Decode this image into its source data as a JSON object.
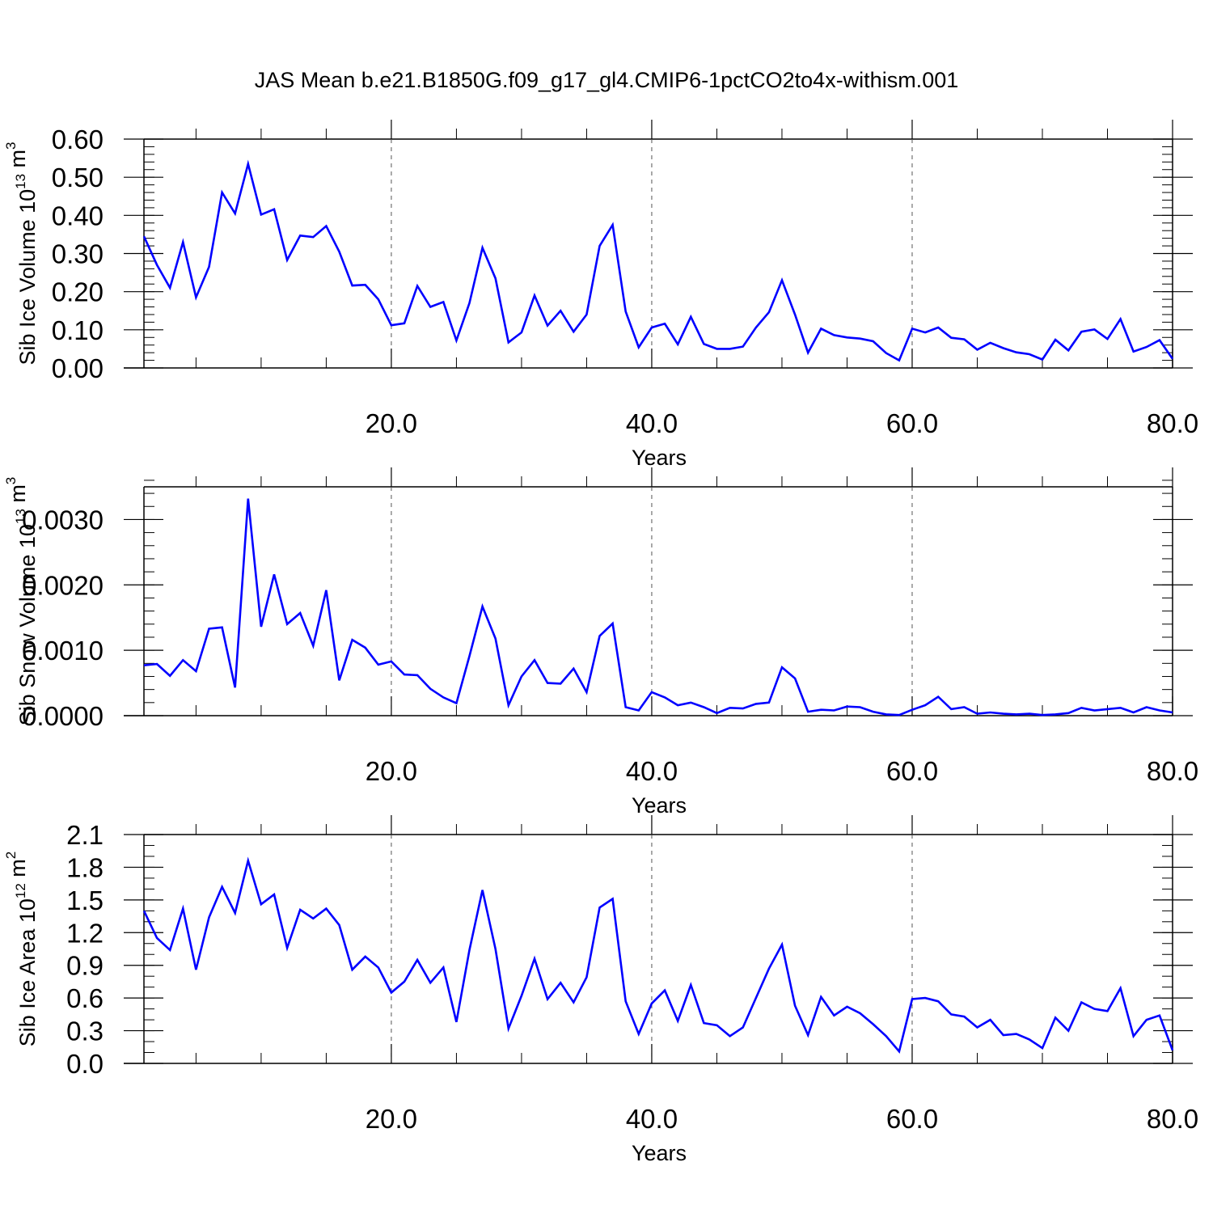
{
  "title": "JAS Mean b.e21.B1850G.f09_g17_gl4.CMIP6-1pctCO2to4x-withism.001",
  "line_color": "#0000ff",
  "chart_data": [
    {
      "type": "line",
      "name": "sib-ice-volume",
      "xlabel": "Years",
      "ylabel": "Sib Ice Volume 10",
      "ylabel_exp": "13",
      "ylabel_unit": " m",
      "ylabel_unit_exp": "3",
      "xlim": [
        1,
        80
      ],
      "ylim": [
        0,
        0.6
      ],
      "grid_x": true,
      "x_ticks": [
        20,
        40,
        60,
        80
      ],
      "x_tick_labels": [
        "20.0",
        "40.0",
        "60.0",
        "80.0"
      ],
      "y_ticks": [
        0,
        0.1,
        0.2,
        0.3,
        0.4,
        0.5,
        0.6
      ],
      "y_tick_labels": [
        "0.00",
        "0.10",
        "0.20",
        "0.30",
        "0.40",
        "0.50",
        "0.60"
      ],
      "y_minor_step": 0.02,
      "x": [
        1,
        2,
        3,
        4,
        5,
        6,
        7,
        8,
        9,
        10,
        11,
        12,
        13,
        14,
        15,
        16,
        17,
        18,
        19,
        20,
        21,
        22,
        23,
        24,
        25,
        26,
        27,
        28,
        29,
        30,
        31,
        32,
        33,
        34,
        35,
        36,
        37,
        38,
        39,
        40,
        41,
        42,
        43,
        44,
        45,
        46,
        47,
        48,
        49,
        50,
        51,
        52,
        53,
        54,
        55,
        56,
        57,
        58,
        59,
        60,
        61,
        62,
        63,
        64,
        65,
        66,
        67,
        68,
        69,
        70,
        71,
        72,
        73,
        74,
        75,
        76,
        77,
        78,
        79,
        80
      ],
      "values": [
        0.345,
        0.27,
        0.21,
        0.33,
        0.185,
        0.265,
        0.46,
        0.405,
        0.535,
        0.402,
        0.416,
        0.283,
        0.347,
        0.343,
        0.372,
        0.305,
        0.216,
        0.218,
        0.18,
        0.112,
        0.117,
        0.215,
        0.16,
        0.173,
        0.072,
        0.17,
        0.315,
        0.235,
        0.067,
        0.093,
        0.19,
        0.111,
        0.15,
        0.095,
        0.14,
        0.32,
        0.375,
        0.148,
        0.054,
        0.106,
        0.116,
        0.062,
        0.134,
        0.063,
        0.05,
        0.05,
        0.056,
        0.106,
        0.146,
        0.23,
        0.14,
        0.04,
        0.103,
        0.086,
        0.08,
        0.077,
        0.07,
        0.039,
        0.02,
        0.103,
        0.093,
        0.106,
        0.079,
        0.075,
        0.048,
        0.066,
        0.052,
        0.041,
        0.036,
        0.022,
        0.074,
        0.046,
        0.095,
        0.101,
        0.076,
        0.128,
        0.043,
        0.055,
        0.073,
        0.024
      ]
    },
    {
      "type": "line",
      "name": "sib-snow-volume",
      "xlabel": "Years",
      "ylabel": "Sib Snow Volume 10",
      "ylabel_exp": "13",
      "ylabel_unit": " m",
      "ylabel_unit_exp": "3",
      "xlim": [
        1,
        80
      ],
      "ylim": [
        0,
        0.0035
      ],
      "grid_x": true,
      "x_ticks": [
        20,
        40,
        60,
        80
      ],
      "x_tick_labels": [
        "20.0",
        "40.0",
        "60.0",
        "80.0"
      ],
      "y_ticks": [
        0,
        0.001,
        0.002,
        0.003
      ],
      "y_tick_labels": [
        "0.0000",
        "0.0010",
        "0.0020",
        "0.0030"
      ],
      "y_minor_step": 0.0002,
      "x": [
        1,
        2,
        3,
        4,
        5,
        6,
        7,
        8,
        9,
        10,
        11,
        12,
        13,
        14,
        15,
        16,
        17,
        18,
        19,
        20,
        21,
        22,
        23,
        24,
        25,
        26,
        27,
        28,
        29,
        30,
        31,
        32,
        33,
        34,
        35,
        36,
        37,
        38,
        39,
        40,
        41,
        42,
        43,
        44,
        45,
        46,
        47,
        48,
        49,
        50,
        51,
        52,
        53,
        54,
        55,
        56,
        57,
        58,
        59,
        60,
        61,
        62,
        63,
        64,
        65,
        66,
        67,
        68,
        69,
        70,
        71,
        72,
        73,
        74,
        75,
        76,
        77,
        78,
        79,
        80
      ],
      "values": [
        0.00077,
        0.00079,
        0.00061,
        0.00085,
        0.00068,
        0.00133,
        0.00135,
        0.00043,
        0.00332,
        0.00136,
        0.00216,
        0.0014,
        0.00157,
        0.00107,
        0.00192,
        0.00054,
        0.00116,
        0.00104,
        0.00078,
        0.00083,
        0.00063,
        0.00062,
        0.00041,
        0.00028,
        0.00019,
        0.00091,
        0.00167,
        0.00118,
        0.00016,
        0.0006,
        0.00085,
        0.0005,
        0.00049,
        0.00072,
        0.00036,
        0.00122,
        0.00141,
        0.00013,
        8e-05,
        0.00036,
        0.00028,
        0.00016,
        0.0002,
        0.00013,
        4e-05,
        0.00012,
        0.00011,
        0.00018,
        0.0002,
        0.00074,
        0.00057,
        6e-05,
        9e-05,
        8e-05,
        0.00014,
        0.00013,
        6e-05,
        2e-05,
        1e-05,
        9e-05,
        0.00016,
        0.00029,
        0.0001,
        0.00013,
        3e-05,
        5e-05,
        3e-05,
        2e-05,
        3e-05,
        1e-05,
        2e-05,
        4e-05,
        0.00012,
        8e-05,
        0.0001,
        0.00012,
        5e-05,
        0.00013,
        8e-05,
        5e-05
      ]
    },
    {
      "type": "line",
      "name": "sib-ice-area",
      "xlabel": "Years",
      "ylabel": "Sib Ice Area 10",
      "ylabel_exp": "12",
      "ylabel_unit": " m",
      "ylabel_unit_exp": "2",
      "xlim": [
        1,
        80
      ],
      "ylim": [
        0,
        2.1
      ],
      "grid_x": true,
      "x_ticks": [
        20,
        40,
        60,
        80
      ],
      "x_tick_labels": [
        "20.0",
        "40.0",
        "60.0",
        "80.0"
      ],
      "y_ticks": [
        0,
        0.3,
        0.6,
        0.9,
        1.2,
        1.5,
        1.8,
        2.1
      ],
      "y_tick_labels": [
        "0.0",
        "0.3",
        "0.6",
        "0.9",
        "1.2",
        "1.5",
        "1.8",
        "2.1"
      ],
      "y_minor_step": 0.1,
      "x": [
        1,
        2,
        3,
        4,
        5,
        6,
        7,
        8,
        9,
        10,
        11,
        12,
        13,
        14,
        15,
        16,
        17,
        18,
        19,
        20,
        21,
        22,
        23,
        24,
        25,
        26,
        27,
        28,
        29,
        30,
        31,
        32,
        33,
        34,
        35,
        36,
        37,
        38,
        39,
        40,
        41,
        42,
        43,
        44,
        45,
        46,
        47,
        48,
        49,
        50,
        51,
        52,
        53,
        54,
        55,
        56,
        57,
        58,
        59,
        60,
        61,
        62,
        63,
        64,
        65,
        66,
        67,
        68,
        69,
        70,
        71,
        72,
        73,
        74,
        75,
        76,
        77,
        78,
        79,
        80
      ],
      "values": [
        1.4,
        1.15,
        1.04,
        1.42,
        0.86,
        1.34,
        1.62,
        1.38,
        1.86,
        1.46,
        1.55,
        1.06,
        1.41,
        1.33,
        1.42,
        1.27,
        0.86,
        0.98,
        0.88,
        0.65,
        0.75,
        0.95,
        0.74,
        0.88,
        0.38,
        1.04,
        1.59,
        1.05,
        0.32,
        0.62,
        0.96,
        0.59,
        0.74,
        0.56,
        0.79,
        1.43,
        1.51,
        0.57,
        0.27,
        0.55,
        0.67,
        0.39,
        0.72,
        0.37,
        0.35,
        0.25,
        0.33,
        0.6,
        0.87,
        1.09,
        0.53,
        0.26,
        0.61,
        0.44,
        0.52,
        0.46,
        0.36,
        0.25,
        0.11,
        0.59,
        0.6,
        0.57,
        0.45,
        0.43,
        0.33,
        0.4,
        0.26,
        0.27,
        0.22,
        0.14,
        0.42,
        0.3,
        0.56,
        0.5,
        0.48,
        0.69,
        0.25,
        0.4,
        0.44,
        0.12
      ]
    }
  ]
}
